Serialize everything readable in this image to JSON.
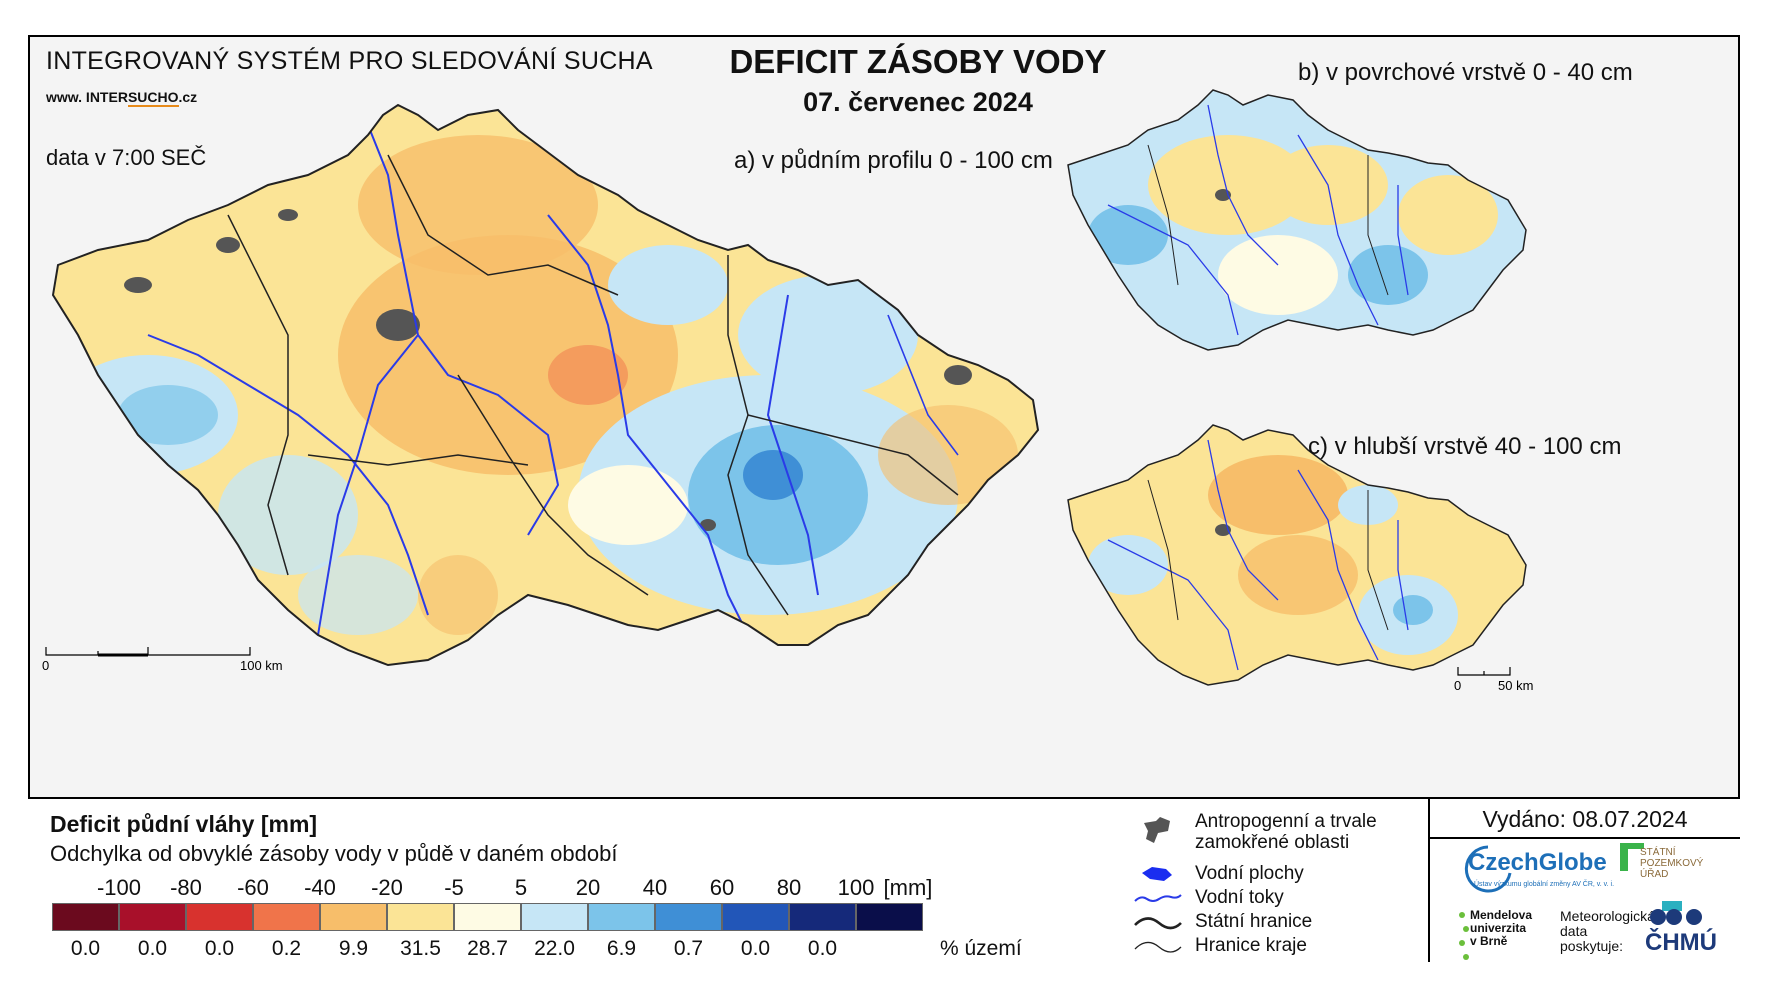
{
  "header": {
    "system_title": "INTEGROVANÝ SYSTÉM PRO SLEDOVÁNÍ SUCHA",
    "website_prefix": "www. INTER",
    "website_highlight": "SUCHO",
    "website_suffix": ".cz",
    "data_time": "data v 7:00 SEČ",
    "main_title": "DEFICIT ZÁSOBY VODY",
    "main_date": "07. červenec 2024"
  },
  "panels": {
    "a_label": "a) v půdním profilu 0 - 100 cm",
    "b_label": "b) v povrchové vrstvě 0 - 40 cm",
    "c_label": "c) v hlubší vrstvě 40 - 100 cm"
  },
  "scale_bars": {
    "main_zero": "0",
    "main_end": "100 km",
    "small_zero": "0",
    "small_end": "50 km"
  },
  "legend": {
    "title": "Deficit půdní vláhy  [mm]",
    "subtitle": "Odchylka od obvyklé zásoby vody v půdě v daném období",
    "unit": "[mm]",
    "pct_unit": "% území",
    "breaks": [
      "-100",
      "-80",
      "-60",
      "-40",
      "-20",
      "-5",
      "5",
      "20",
      "40",
      "60",
      "80",
      "100"
    ],
    "classes": [
      {
        "color": "#6b0a1e",
        "pct": "0.0"
      },
      {
        "color": "#a8102a",
        "pct": "0.0"
      },
      {
        "color": "#d8322e",
        "pct": "0.0"
      },
      {
        "color": "#f0744a",
        "pct": "0.2"
      },
      {
        "color": "#f7be6a",
        "pct": "9.9"
      },
      {
        "color": "#fbe496",
        "pct": "31.5"
      },
      {
        "color": "#fefbe4",
        "pct": "28.7"
      },
      {
        "color": "#c6e6f6",
        "pct": "22.0"
      },
      {
        "color": "#7cc4ea",
        "pct": "6.9"
      },
      {
        "color": "#3f8fd6",
        "pct": "0.7"
      },
      {
        "color": "#2256b8",
        "pct": "0.0"
      },
      {
        "color": "#15297a",
        "pct": "0.0"
      },
      {
        "color": "#0a0e4a",
        "pct": ""
      }
    ]
  },
  "symbols": {
    "urban": "Antropogenní a trvale zamokřené oblasti",
    "water_bodies": "Vodní plochy",
    "rivers": "Vodní toky",
    "state_border": "Státní hranice",
    "region_border": "Hranice kraje"
  },
  "issued": "Vydáno: 08.07.2024",
  "logos": {
    "czechglobe": "CzechGlobe",
    "czechglobe_sub": "Ústav výzkumu globální změny AV ČR, v. v. i.",
    "spu": "STÁTNÍ\nPOZEMKOVÝ\nÚŘAD",
    "mendel": "Mendelova\nuniverzita\nv Brně",
    "met_data": "Meteorologická\ndata\nposkytuje:",
    "chmu": "ČHMÚ"
  },
  "colors": {
    "river": "#2a3be8",
    "border": "#222222",
    "urban": "#555555"
  }
}
